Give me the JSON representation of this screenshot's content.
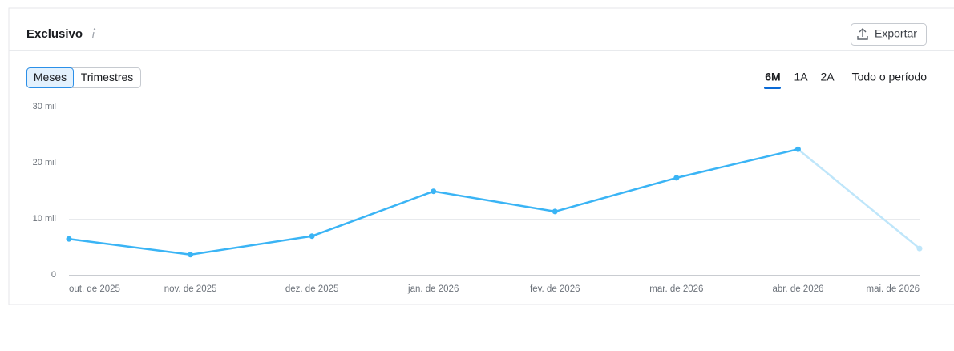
{
  "header": {
    "title": "Exclusivo",
    "export": "Exportar"
  },
  "controls": {
    "granularity": [
      "Meses",
      "Trimestres"
    ],
    "periods": [
      "6M",
      "1A",
      "2A",
      "Todo o período"
    ]
  },
  "chart_data": {
    "type": "line",
    "categories": [
      "out. de 2025",
      "nov. de 2025",
      "dez. de 2025",
      "jan. de 2026",
      "fev. de 2026",
      "mar. de 2026",
      "abr. de 2026",
      "mai. de 2026"
    ],
    "values": [
      6400,
      3600,
      6900,
      14900,
      11300,
      17300,
      22400,
      4700
    ],
    "color": "#3ab4f5",
    "last_segment_color": "#bfe6fa",
    "ylim": [
      0,
      30000
    ],
    "yticks": [
      0,
      {
        "value": 10000,
        "label": "10 mil"
      },
      {
        "value": 20000,
        "label": "20 mil"
      },
      {
        "value": 30000,
        "label": "30 mil"
      }
    ],
    "grid": true
  }
}
